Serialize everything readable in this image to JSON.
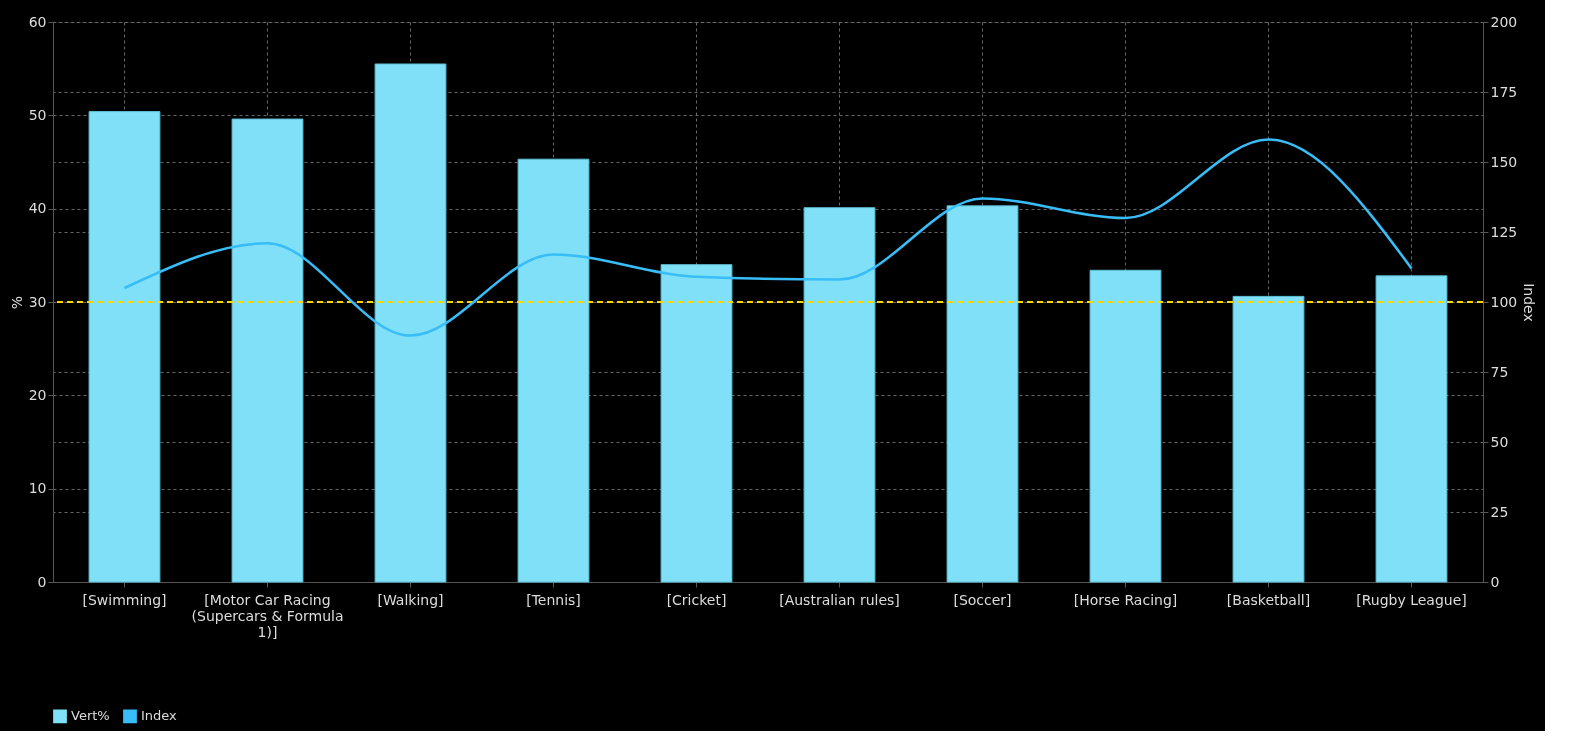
{
  "chart_data": {
    "type": "bar",
    "categories": [
      "[Swimming]",
      "[Motor Car Racing (Supercars & Formula 1)]",
      "[Walking]",
      "[Tennis]",
      "[Cricket]",
      "[Australian rules]",
      "[Soccer]",
      "[Horse Racing]",
      "[Basketball]",
      "[Rugby League]"
    ],
    "series": [
      {
        "name": "Vert%",
        "color": "#7fe0f7",
        "values": [
          50.4,
          49.6,
          55.5,
          45.3,
          34.0,
          40.1,
          40.3,
          33.4,
          30.6,
          32.8
        ]
      },
      {
        "name": "Index",
        "type": "line",
        "axis": "y2",
        "color": "#38bdf8",
        "values": [
          105,
          121,
          88,
          117,
          109,
          108,
          137,
          130,
          158,
          112
        ]
      }
    ],
    "ylabel": "%",
    "y2label": "Index",
    "ylim": [
      0,
      60
    ],
    "yticks": [
      0,
      10,
      20,
      30,
      40,
      50,
      60
    ],
    "y2lim": [
      0,
      200
    ],
    "y2ticks": [
      0,
      25,
      50,
      75,
      100,
      125,
      150,
      175,
      200
    ],
    "ref_lines": [
      {
        "axis": "y",
        "value": 30,
        "color": "#ffd700",
        "line_style": "dashed"
      }
    ],
    "grid": true,
    "legend": "bottom"
  }
}
